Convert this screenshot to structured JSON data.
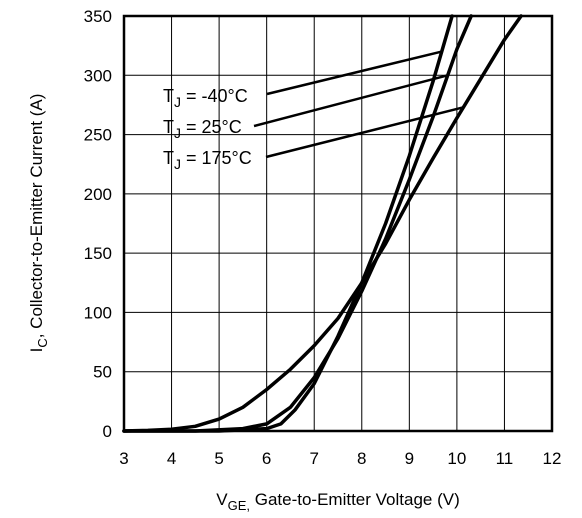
{
  "chart_data": {
    "type": "line",
    "title": "",
    "xlabel": {
      "main": "V",
      "sub": "GE,",
      "rest": " Gate-to-Emitter Voltage (V)"
    },
    "ylabel": {
      "main": "I",
      "sub": "C",
      "rest": ",  Collector-to-Emitter Current  (A)"
    },
    "xlim": [
      3,
      12
    ],
    "ylim": [
      0,
      350
    ],
    "x_ticks": [
      "3",
      "4",
      "5",
      "6",
      "7",
      "8",
      "9",
      "10",
      "11",
      "12"
    ],
    "y_ticks": [
      "0",
      "50",
      "100",
      "150",
      "200",
      "250",
      "300",
      "350"
    ],
    "grid": true,
    "series": [
      {
        "name": "TJ = -40°C",
        "label": {
          "pre": "T",
          "sub": "J",
          "post": " = -40°C"
        },
        "x": [
          3.0,
          5.0,
          6.0,
          6.3,
          6.6,
          7.0,
          7.5,
          8.0,
          8.5,
          9.0,
          9.5,
          9.9
        ],
        "y": [
          0,
          0,
          2,
          6,
          18,
          40,
          80,
          125,
          175,
          232,
          295,
          350
        ]
      },
      {
        "name": "TJ = 25°C",
        "label": {
          "pre": "T",
          "sub": "J",
          "post": " = 25°C"
        },
        "x": [
          3.0,
          4.5,
          5.5,
          6.0,
          6.5,
          7.0,
          7.5,
          8.0,
          8.5,
          9.0,
          9.5,
          10.0,
          10.3
        ],
        "y": [
          0,
          0,
          2,
          6,
          20,
          45,
          78,
          118,
          162,
          212,
          265,
          322,
          350
        ]
      },
      {
        "name": "TJ = 175°C",
        "label": {
          "pre": "T",
          "sub": "J",
          "post": " = 175°C"
        },
        "x": [
          3.0,
          3.5,
          4.0,
          4.5,
          5.0,
          5.5,
          6.0,
          6.5,
          7.0,
          7.5,
          8.0,
          8.5,
          9.0,
          9.5,
          10.0,
          10.5,
          11.0,
          11.35
        ],
        "y": [
          0,
          0.5,
          1.5,
          4,
          10,
          20,
          35,
          52,
          72,
          95,
          125,
          158,
          195,
          230,
          264,
          297,
          330,
          350
        ]
      }
    ]
  }
}
